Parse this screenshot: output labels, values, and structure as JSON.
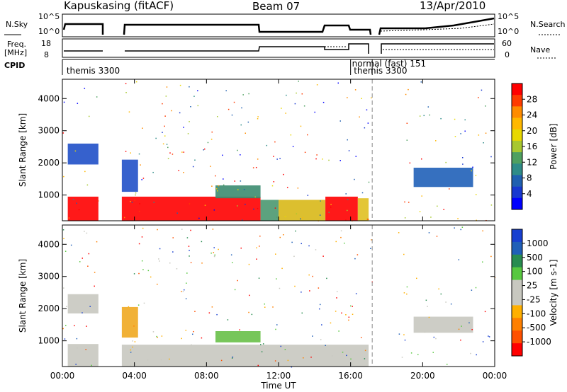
{
  "header": {
    "station": "Kapuskasing (fitACF)",
    "beam": "Beam 07",
    "date": "13/Apr/2010"
  },
  "side_labels": {
    "nsky": "N.Sky",
    "nsearch": "N.Search",
    "freq_line1": "Freq.",
    "freq_line2": "[MHz]",
    "nave": "Nave",
    "cpid": "CPID"
  },
  "noise_axis": {
    "left_ticks": [
      "10^5",
      "10^0"
    ],
    "right_ticks": [
      "10^5",
      "10^0"
    ]
  },
  "freq_axis": {
    "left_ticks": [
      "18",
      "8"
    ],
    "right_ticks": [
      "60",
      "0"
    ]
  },
  "cpid_labels": [
    {
      "text": "themis 3300",
      "at": 0.15
    },
    {
      "text": "normal (fast) 151",
      "at": 16.0
    },
    {
      "text": "themis 3300",
      "at": 16.1
    }
  ],
  "mode_changes": [
    16.0,
    17.2
  ],
  "chart_data": [
    {
      "type": "heatmap",
      "name": "power",
      "ylabel": "Slant Range [km]",
      "yticks": [
        1000,
        2000,
        3000,
        4000
      ],
      "ylim": [
        200,
        4600
      ],
      "xlim": [
        0,
        24
      ],
      "xtick_labels": [
        "00:00",
        "04:00",
        "08:00",
        "12:00",
        "16:00",
        "20:00",
        "00:00"
      ],
      "colorbar": {
        "label": "Power [dB]",
        "tick_labels": [
          "28",
          "24",
          "20",
          "16",
          "12",
          "8",
          "4"
        ],
        "colors": [
          "#ff0000",
          "#ff3b00",
          "#ff8c00",
          "#ffb800",
          "#e8d800",
          "#a8c830",
          "#4fa060",
          "#2f8c88",
          "#2060b0",
          "#1838d0",
          "#0000ff"
        ]
      },
      "regions": [
        {
          "t0": 0.3,
          "t1": 2.0,
          "r0": 200,
          "r1": 950,
          "color": "#ff0000",
          "label": "red"
        },
        {
          "t0": 0.3,
          "t1": 2.0,
          "r0": 1950,
          "r1": 2600,
          "color": "#2050c8",
          "label": "blue"
        },
        {
          "t0": 3.3,
          "t1": 11.0,
          "r0": 200,
          "r1": 950,
          "color": "#ff0000",
          "label": "red"
        },
        {
          "t0": 3.3,
          "t1": 4.2,
          "r0": 1100,
          "r1": 2100,
          "color": "#2050c8",
          "label": "blue"
        },
        {
          "t0": 8.5,
          "t1": 11.0,
          "r0": 900,
          "r1": 1300,
          "color": "#3c8c70",
          "label": "green"
        },
        {
          "t0": 11.0,
          "t1": 12.0,
          "r0": 200,
          "r1": 850,
          "color": "#4a9870",
          "label": "green"
        },
        {
          "t0": 12.0,
          "t1": 14.6,
          "r0": 200,
          "r1": 850,
          "color": "#d8b818",
          "label": "yellow"
        },
        {
          "t0": 14.6,
          "t1": 16.4,
          "r0": 200,
          "r1": 950,
          "color": "#ff0000",
          "label": "red"
        },
        {
          "t0": 16.4,
          "t1": 17.0,
          "r0": 200,
          "r1": 900,
          "color": "#e0c020",
          "label": "yellow"
        },
        {
          "t0": 19.5,
          "t1": 22.8,
          "r0": 1250,
          "r1": 1850,
          "color": "#2060b8",
          "label": "blue"
        }
      ]
    },
    {
      "type": "heatmap",
      "name": "velocity",
      "ylabel": "Slant Range [km]",
      "yticks": [
        1000,
        2000,
        3000,
        4000
      ],
      "ylim": [
        200,
        4600
      ],
      "xlim": [
        0,
        24
      ],
      "xlabel": "Time UT",
      "xtick_labels": [
        "00:00",
        "04:00",
        "08:00",
        "12:00",
        "16:00",
        "20:00",
        "00:00"
      ],
      "colorbar": {
        "label": "Velocity [m s-1]",
        "tick_labels": [
          "1000",
          "500",
          "100",
          "25",
          "-25",
          "-100",
          "-500",
          "-1000"
        ],
        "colors": [
          "#1840d0",
          "#2060b8",
          "#288c50",
          "#58c840",
          "#c8c8c0",
          "#c8c8c0",
          "#ffb000",
          "#ff8000",
          "#ff5000",
          "#ff0000"
        ]
      },
      "regions": [
        {
          "t0": 0.3,
          "t1": 2.0,
          "r0": 200,
          "r1": 900,
          "color": "#c8c8c0",
          "label": "grey"
        },
        {
          "t0": 0.3,
          "t1": 2.0,
          "r0": 1850,
          "r1": 2450,
          "color": "#c8c8c0",
          "label": "grey"
        },
        {
          "t0": 3.3,
          "t1": 17.0,
          "r0": 200,
          "r1": 880,
          "color": "#c8c8c0",
          "label": "grey"
        },
        {
          "t0": 3.3,
          "t1": 4.2,
          "r0": 1100,
          "r1": 2050,
          "color": "#f0a820",
          "label": "orange"
        },
        {
          "t0": 8.5,
          "t1": 11.0,
          "r0": 950,
          "r1": 1300,
          "color": "#68c048",
          "label": "green"
        },
        {
          "t0": 19.5,
          "t1": 22.8,
          "r0": 1250,
          "r1": 1750,
          "color": "#c8c8c0",
          "label": "grey"
        }
      ]
    }
  ]
}
